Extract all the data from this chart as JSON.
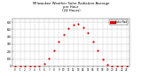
{
  "title": "Milwaukee Weather Solar Radiation Average\nper Hour\n(24 Hours)",
  "x": [
    0,
    1,
    2,
    3,
    4,
    5,
    6,
    7,
    8,
    9,
    10,
    11,
    12,
    13,
    14,
    15,
    16,
    17,
    18,
    19,
    20,
    21,
    22,
    23
  ],
  "y": [
    0,
    0,
    0,
    0,
    0,
    2,
    30,
    110,
    220,
    330,
    430,
    510,
    560,
    580,
    530,
    450,
    340,
    210,
    90,
    20,
    2,
    0,
    0,
    0
  ],
  "dot_color": "#dd0000",
  "dot_size": 2.5,
  "background_color": "#ffffff",
  "grid_color": "#bbbbbb",
  "ylim": [
    0,
    650
  ],
  "xlim": [
    -0.5,
    23.5
  ],
  "xtick_labels": [
    "0",
    "1",
    "2",
    "3",
    "4",
    "5",
    "6",
    "7",
    "8",
    "9",
    "10",
    "11",
    "12",
    "13",
    "14",
    "15",
    "16",
    "17",
    "18",
    "19",
    "20",
    "21",
    "22",
    "23"
  ],
  "ytick_values": [
    0,
    100,
    200,
    300,
    400,
    500,
    600
  ],
  "legend_label": "Solar Rad",
  "legend_color": "#dd0000"
}
